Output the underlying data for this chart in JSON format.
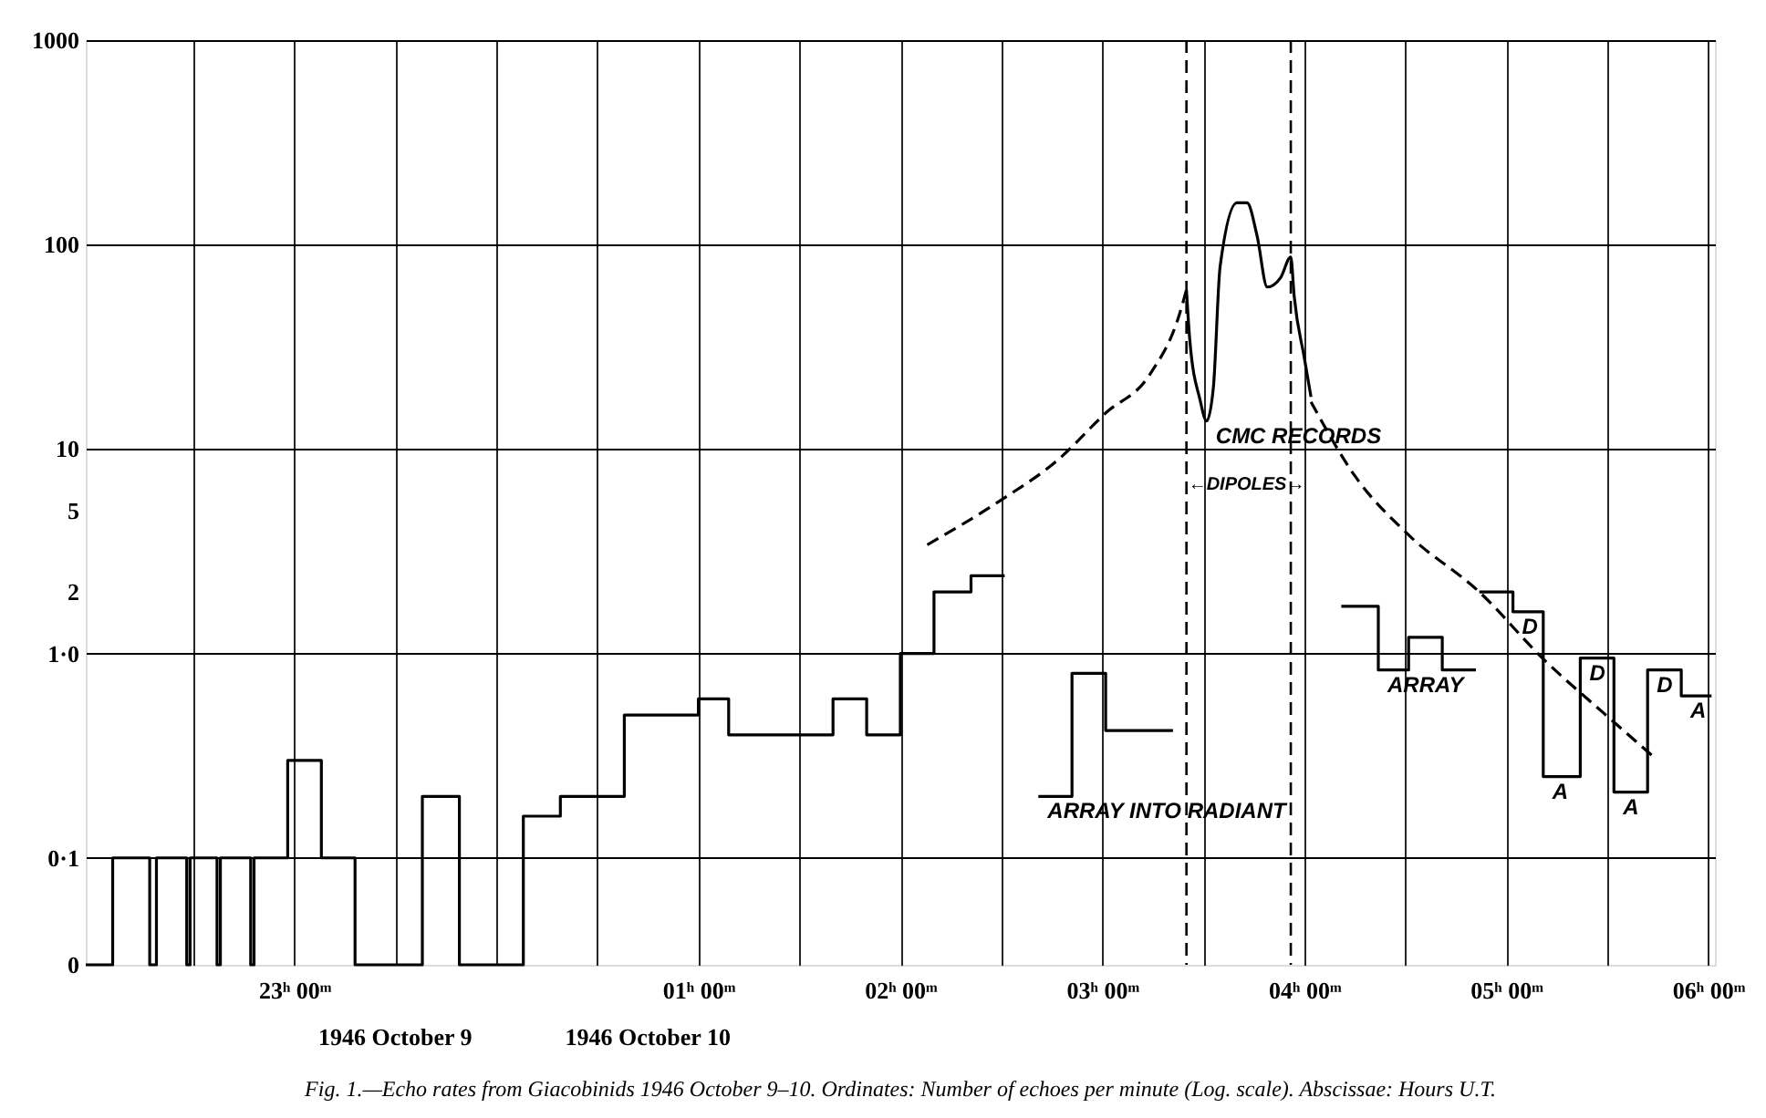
{
  "chart_data": {
    "type": "step",
    "xlim": [
      "1946-10-09T21:58",
      "1946-10-10T06:02"
    ],
    "ylim": [
      0.03,
      1000
    ],
    "log": "y",
    "grid": true,
    "xticks": [
      {
        "value": "1946-10-09T22:30",
        "label": null
      },
      {
        "value": "1946-10-09T23:00",
        "label": "23ʰ 00ᵐ"
      },
      {
        "value": "1946-10-09T23:30",
        "label": null
      },
      {
        "value": "1946-10-10T00:00",
        "label": null
      },
      {
        "value": "1946-10-10T00:30",
        "label": null
      },
      {
        "value": "1946-10-10T01:00",
        "label": "01ʰ 00ᵐ"
      },
      {
        "value": "1946-10-10T01:30",
        "label": null
      },
      {
        "value": "1946-10-10T02:00",
        "label": "02ʰ 00ᵐ"
      },
      {
        "value": "1946-10-10T02:30",
        "label": null
      },
      {
        "value": "1946-10-10T03:00",
        "label": "03ʰ 00ᵐ"
      },
      {
        "value": "1946-10-10T03:30",
        "label": null
      },
      {
        "value": "1946-10-10T04:00",
        "label": "04ʰ 00ᵐ"
      },
      {
        "value": "1946-10-10T04:30",
        "label": null
      },
      {
        "value": "1946-10-10T05:00",
        "label": "05ʰ 00ᵐ"
      },
      {
        "value": "1946-10-10T05:30",
        "label": null
      },
      {
        "value": "1946-10-10T06:00",
        "label": "06ʰ 00ᵐ"
      }
    ],
    "yticks": [
      {
        "value": 0.03,
        "label": "0"
      },
      {
        "value": 0.1,
        "label": "0·1"
      },
      {
        "value": 1,
        "label": "1·0"
      },
      2,
      5,
      10,
      100,
      1000
    ],
    "series": [
      {
        "color": "#000000",
        "x": [
          "1946-10-09T21:58",
          "1946-10-09T22:06",
          "1946-10-09T22:17",
          "1946-10-09T22:19",
          "1946-10-09T22:28",
          "1946-10-09T22:29",
          "1946-10-09T22:37",
          "1946-10-09T22:38",
          "1946-10-09T22:47",
          "1946-10-09T22:48",
          "1946-10-09T22:58",
          "1946-10-09T23:08",
          "1946-10-09T23:18",
          "1946-10-09T23:38",
          "1946-10-09T23:49",
          "1946-10-10T00:08",
          "1946-10-10T00:19",
          "1946-10-10T00:38",
          "1946-10-10T01:00",
          "1946-10-10T01:09",
          "1946-10-10T01:40",
          "1946-10-10T01:50",
          "1946-10-10T02:00",
          "1946-10-10T02:10",
          "1946-10-10T02:21",
          "1946-10-10T02:31"
        ],
        "values": [
          0.03,
          0.1,
          0.03,
          0.1,
          0.03,
          0.1,
          0.03,
          0.1,
          0.03,
          0.1,
          0.3,
          0.1,
          0.03,
          0.2,
          0.03,
          0.16,
          0.2,
          0.5,
          0.6,
          0.4,
          0.6,
          0.4,
          1.0,
          2.0,
          2.4,
          2.4
        ]
      },
      {
        "color": "#000000",
        "x": [
          "1946-10-10T02:41",
          "1946-10-10T02:51",
          "1946-10-10T03:01",
          "1946-10-10T03:21"
        ],
        "values": [
          0.2,
          0.8,
          0.42,
          0.42
        ]
      },
      {
        "color": "#000000",
        "x": [
          "1946-10-10T04:11",
          "1946-10-10T04:22",
          "1946-10-10T04:31",
          "1946-10-10T04:41",
          "1946-10-10T04:51"
        ],
        "values": [
          1.7,
          0.83,
          1.2,
          0.83,
          0.83
        ]
      },
      {
        "color": "#000000",
        "x": [
          "1946-10-10T04:52",
          "1946-10-10T05:02",
          "1946-10-10T05:11",
          "1946-10-10T05:22",
          "1946-10-10T05:32",
          "1946-10-10T05:42",
          "1946-10-10T05:52",
          "1946-10-10T06:01"
        ],
        "values": [
          2.0,
          1.6,
          0.25,
          0.95,
          0.21,
          0.83,
          0.62,
          0.62
        ]
      },
      {
        "type": "line",
        "line_style": "dashed",
        "color": "#000000",
        "x": [
          "1946-10-10T02:08",
          "1946-10-10T02:29",
          "1946-10-10T02:47",
          "1946-10-10T03:01",
          "1946-10-10T03:14",
          "1946-10-10T03:23",
          "1946-10-10T03:25"
        ],
        "values": [
          3.4,
          5.5,
          8.9,
          15,
          23,
          46,
          60
        ]
      },
      {
        "type": "line",
        "line_style": "solid",
        "color": "#000000",
        "x": [
          "1946-10-10T03:25",
          "1946-10-10T03:26",
          "1946-10-10T03:29",
          "1946-10-10T03:31",
          "1946-10-10T03:33",
          "1946-10-10T03:35",
          "1946-10-10T03:40",
          "1946-10-10T03:43",
          "1946-10-10T03:46",
          "1946-10-10T03:49",
          "1946-10-10T03:53",
          "1946-10-10T03:56",
          "1946-10-10T03:57",
          "1946-10-10T04:00",
          "1946-10-10T04:02"
        ],
        "values": [
          60,
          34,
          17.5,
          13.7,
          20,
          78,
          160,
          160,
          110,
          62,
          69,
          87,
          56,
          28,
          18
        ]
      },
      {
        "type": "line",
        "line_style": "dashed",
        "color": "#000000",
        "x": [
          "1946-10-10T04:02",
          "1946-10-10T04:15",
          "1946-10-10T04:31",
          "1946-10-10T04:52",
          "1946-10-10T05:11",
          "1946-10-10T05:29",
          "1946-10-10T05:44"
        ],
        "values": [
          17,
          7.4,
          3.8,
          2.0,
          0.94,
          0.51,
          0.31
        ]
      }
    ],
    "ref_lines": [
      {
        "axis": "x",
        "value": "1946-10-10T03:25",
        "label": "←DIPOLES→",
        "line_style": "dashed",
        "color": "#000000"
      },
      {
        "axis": "x",
        "value": "1946-10-10T03:56",
        "label": null,
        "line_style": "dashed",
        "color": "#000000"
      }
    ],
    "annotations": [
      {
        "text": "CMC RECORDS",
        "x": "1946-10-10T03:31",
        "y": 13.7
      },
      {
        "text": "ARRAY INTO RADIANT",
        "x": "1946-10-10T02:41",
        "y": 0.2
      },
      {
        "text": "ARRAY",
        "x": "1946-10-10T04:22",
        "y": 0.83
      },
      {
        "text": "D",
        "x": "1946-10-10T05:02",
        "y": 1.6
      },
      {
        "text": "A",
        "x": "1946-10-10T05:11",
        "y": 0.25
      },
      {
        "text": "D",
        "x": "1946-10-10T05:22",
        "y": 0.95
      },
      {
        "text": "A",
        "x": "1946-10-10T05:32",
        "y": 0.21
      },
      {
        "text": "D",
        "x": "1946-10-10T05:42",
        "y": 0.83
      },
      {
        "text": "A",
        "x": "1946-10-10T05:52",
        "y": 0.62
      },
      "1946 October 9",
      "1946 October 10",
      "Fig. 1.—Echo rates from Giacobinids 1946 October 9–10.   Ordinates: Number of echoes per minute (Log. scale).   Abscissae: Hours U.T."
    ]
  }
}
